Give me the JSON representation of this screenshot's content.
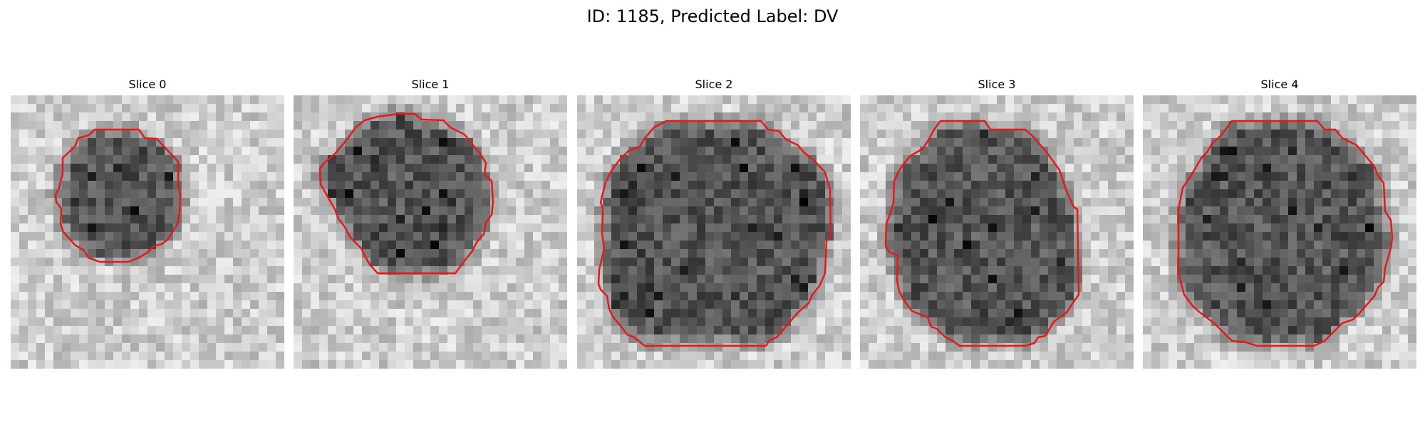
{
  "figure": {
    "title": "ID: 1185, Predicted Label: DV"
  },
  "panels": [
    {
      "title": "Slice 0"
    },
    {
      "title": "Slice 1"
    },
    {
      "title": "Slice 2"
    },
    {
      "title": "Slice 3"
    },
    {
      "title": "Slice 4"
    }
  ],
  "style": {
    "outline_color": "#e31a1c",
    "colormap": "grayscale"
  }
}
